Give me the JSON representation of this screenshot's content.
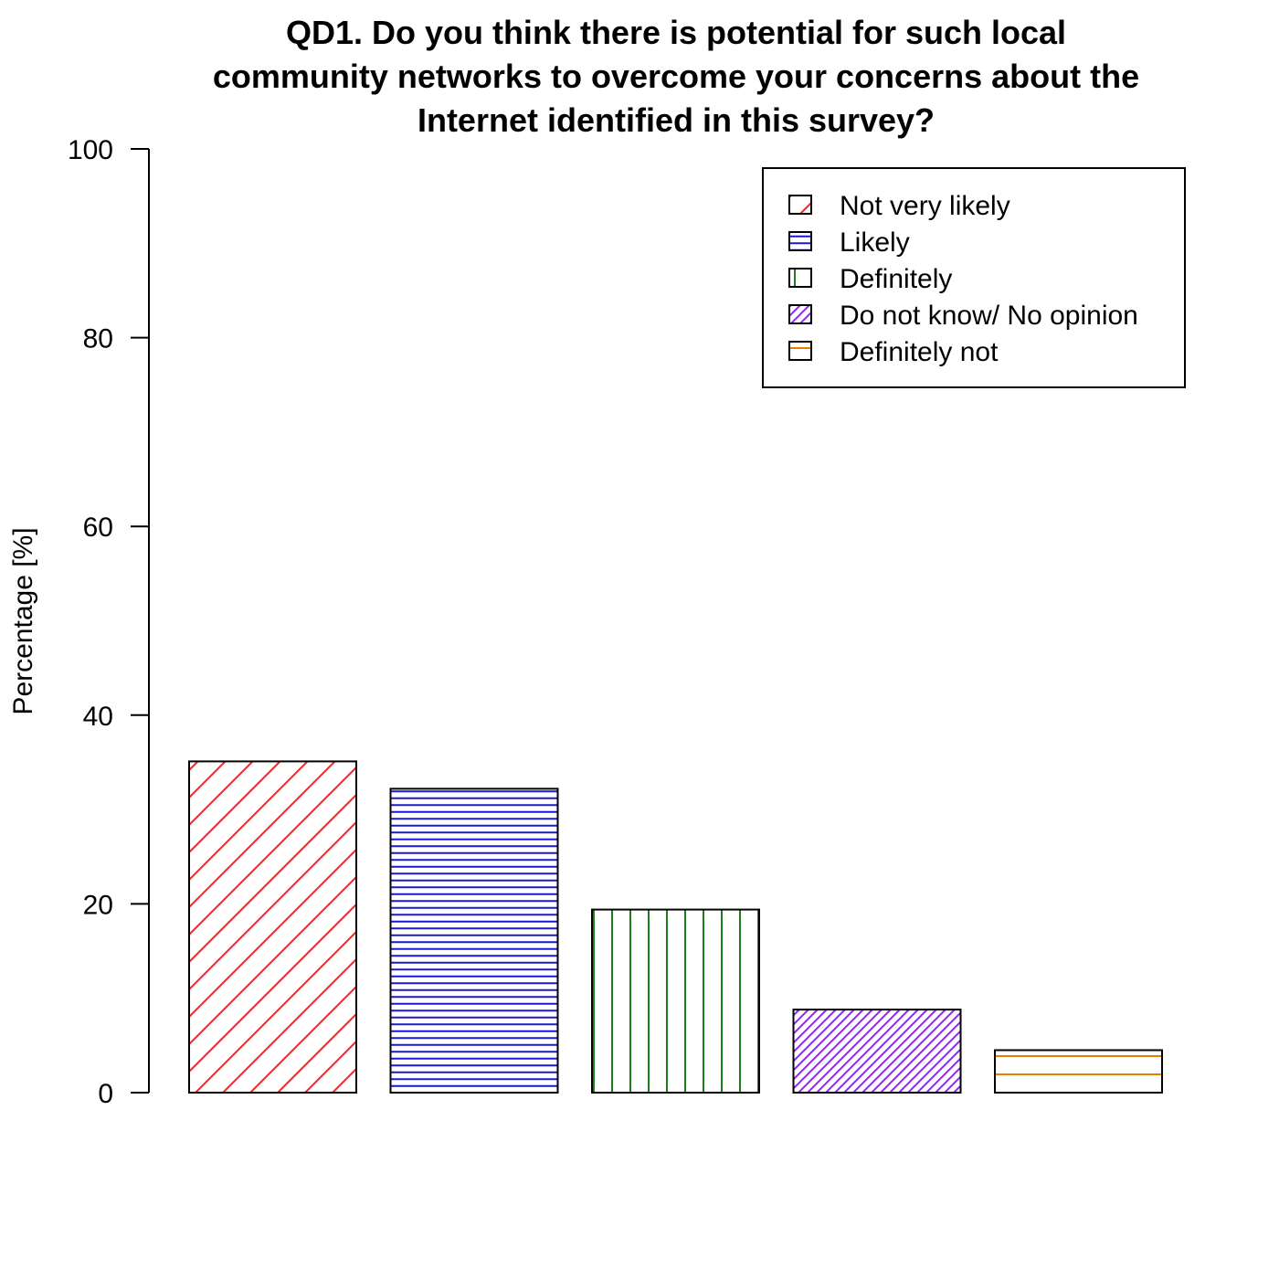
{
  "chart_data": {
    "type": "bar",
    "title_lines": [
      "QD1. Do you think there is potential for such local",
      "community networks to overcome your concerns about the",
      "Internet identified in this survey?"
    ],
    "ylabel": "Percentage [%]",
    "xlabel": "",
    "ylim": [
      0,
      100
    ],
    "yticks": [
      0,
      20,
      40,
      60,
      80,
      100
    ],
    "grid": false,
    "legend_position": "top-right",
    "categories": [
      "Not very likely",
      "Likely",
      "Definitely",
      "Do not know/ No opinion",
      "Definitely not"
    ],
    "values": [
      35.1,
      32.2,
      19.4,
      8.8,
      4.5
    ],
    "colors": [
      "#e32b2b",
      "#1a1acf",
      "#1f7f1f",
      "#8a2be2",
      "#e67e00"
    ],
    "patterns": [
      "diagonal-sparse",
      "horizontal-dense",
      "vertical-sparse",
      "diagonal-dense",
      "horizontal-sparse"
    ]
  }
}
